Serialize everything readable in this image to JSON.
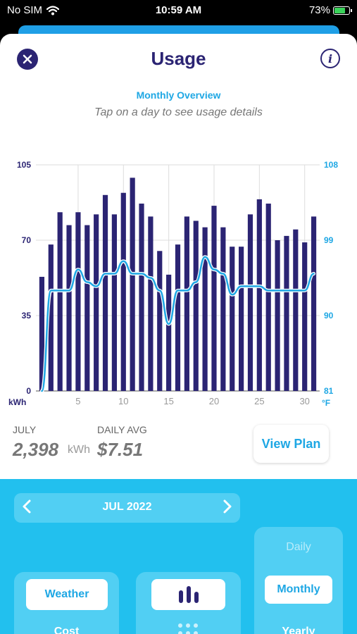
{
  "status_bar": {
    "carrier": "No SIM",
    "time": "10:59 AM",
    "battery": "73%"
  },
  "header": {
    "title": "Usage"
  },
  "subheader": {
    "overview": "Monthly Overview",
    "hint": "Tap on a day to see usage details"
  },
  "summary": {
    "month_label": "JULY",
    "month_total": "2,398",
    "month_unit": "kWh",
    "avg_label": "DAILY AVG",
    "avg_value": "$7.51",
    "view_plan": "View Plan"
  },
  "controls": {
    "month_selector": "JUL 2022",
    "weather_label": "Weather",
    "cost_label": "Cost",
    "period_options": [
      "Daily",
      "Monthly",
      "Yearly"
    ],
    "period_selected": "Monthly"
  },
  "colors": {
    "bar": "#2b2473",
    "temperature_line": "#1ea7e4",
    "panel": "#22c0ee"
  },
  "chart_data": {
    "type": "bar",
    "x_ticks": [
      "5",
      "10",
      "15",
      "20",
      "25",
      "30"
    ],
    "y_left": {
      "label": "kWh",
      "ticks": [
        "0",
        "35",
        "70",
        "105"
      ],
      "range": [
        0,
        105
      ]
    },
    "y_right": {
      "label": "°F",
      "ticks": [
        "81",
        "90",
        "99",
        "108"
      ],
      "range": [
        81,
        108
      ]
    },
    "grid": true,
    "series": [
      {
        "type": "bar",
        "axis": "left",
        "x": [
          1,
          2,
          3,
          4,
          5,
          6,
          7,
          8,
          9,
          10,
          11,
          12,
          13,
          14,
          15,
          16,
          17,
          18,
          19,
          20,
          21,
          22,
          23,
          24,
          25,
          26,
          27,
          28,
          29,
          30,
          31
        ],
        "values": [
          53,
          68,
          83,
          77,
          83,
          77,
          82,
          91,
          82,
          92,
          99,
          87,
          81,
          65,
          54,
          68,
          81,
          79,
          76,
          86,
          76,
          67,
          67,
          82,
          89,
          87,
          70,
          72,
          75,
          69,
          81
        ]
      },
      {
        "type": "line",
        "axis": "right",
        "x": [
          1,
          2,
          3,
          4,
          5,
          6,
          7,
          8,
          9,
          10,
          11,
          12,
          13,
          14,
          15,
          16,
          17,
          18,
          19,
          20,
          21,
          22,
          23,
          24,
          25,
          26,
          27,
          28,
          29,
          30,
          31
        ],
        "values": [
          81,
          93,
          93,
          93,
          95.5,
          94,
          93.5,
          95,
          95,
          96.5,
          95,
          95,
          94.5,
          93,
          89,
          93,
          93,
          94,
          97,
          95.5,
          95,
          92.5,
          93.5,
          93.5,
          93.5,
          93,
          93,
          93,
          93,
          93,
          95
        ]
      }
    ]
  }
}
